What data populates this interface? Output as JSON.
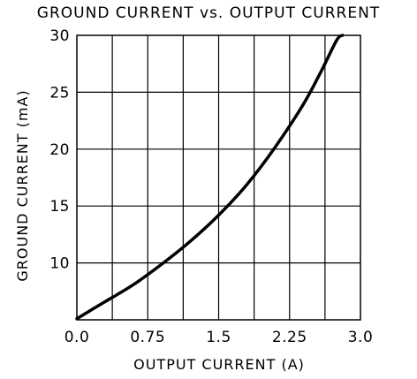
{
  "chart_data": {
    "type": "line",
    "title": "GROUND CURRENT vs. OUTPUT CURRENT",
    "xlabel": "OUTPUT CURRENT (A)",
    "ylabel": "GROUND CURRENT (mA)",
    "xlim": [
      0,
      3.0
    ],
    "ylim": [
      5,
      30
    ],
    "x_ticks": [
      "0.0",
      "0.75",
      "1.5",
      "2.25",
      "3.0"
    ],
    "y_ticks": [
      "10",
      "15",
      "20",
      "25",
      "30"
    ],
    "grid": true,
    "series": [
      {
        "color": "#000000",
        "x": [
          0.0,
          0.3,
          0.6,
          0.9,
          1.2,
          1.5,
          1.8,
          2.1,
          2.4,
          2.6,
          2.75,
          2.81
        ],
        "y": [
          5.1,
          6.6,
          8.1,
          9.9,
          11.9,
          14.2,
          16.9,
          20.2,
          24.0,
          27.1,
          29.6,
          30.0
        ]
      }
    ]
  }
}
